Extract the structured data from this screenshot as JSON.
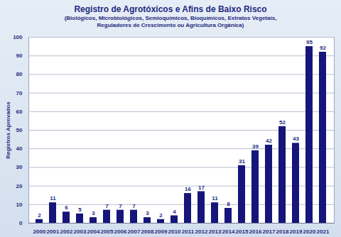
{
  "chart_data": {
    "type": "bar",
    "title": "Registro de Agrotóxicos e Afins de Baixo Risco",
    "subtitle": "(Biológicos, Microbiológicos, Semioquímicos, Bioquímicos, Extratos Vegetais, Reguladores de Crescimento ou Agricultura Orgânica)",
    "y_label": "Registros Aprovados",
    "categories": [
      "2000",
      "2001",
      "2002",
      "2003",
      "2004",
      "2005",
      "2006",
      "2007",
      "2008",
      "2009",
      "2010",
      "2011",
      "2012",
      "2013",
      "2014",
      "2015",
      "2016",
      "2017",
      "2018",
      "2019",
      "2020",
      "2021"
    ],
    "values": [
      2,
      11,
      6,
      5,
      3,
      7,
      7,
      7,
      3,
      2,
      4,
      16,
      17,
      11,
      8,
      31,
      39,
      42,
      52,
      43,
      95,
      92
    ],
    "color": "#15157a",
    "ylim": [
      0,
      100
    ],
    "yticks": [
      0,
      10,
      20,
      30,
      40,
      50,
      60,
      70,
      80,
      90,
      100
    ],
    "grid": true,
    "data_labels": true
  }
}
